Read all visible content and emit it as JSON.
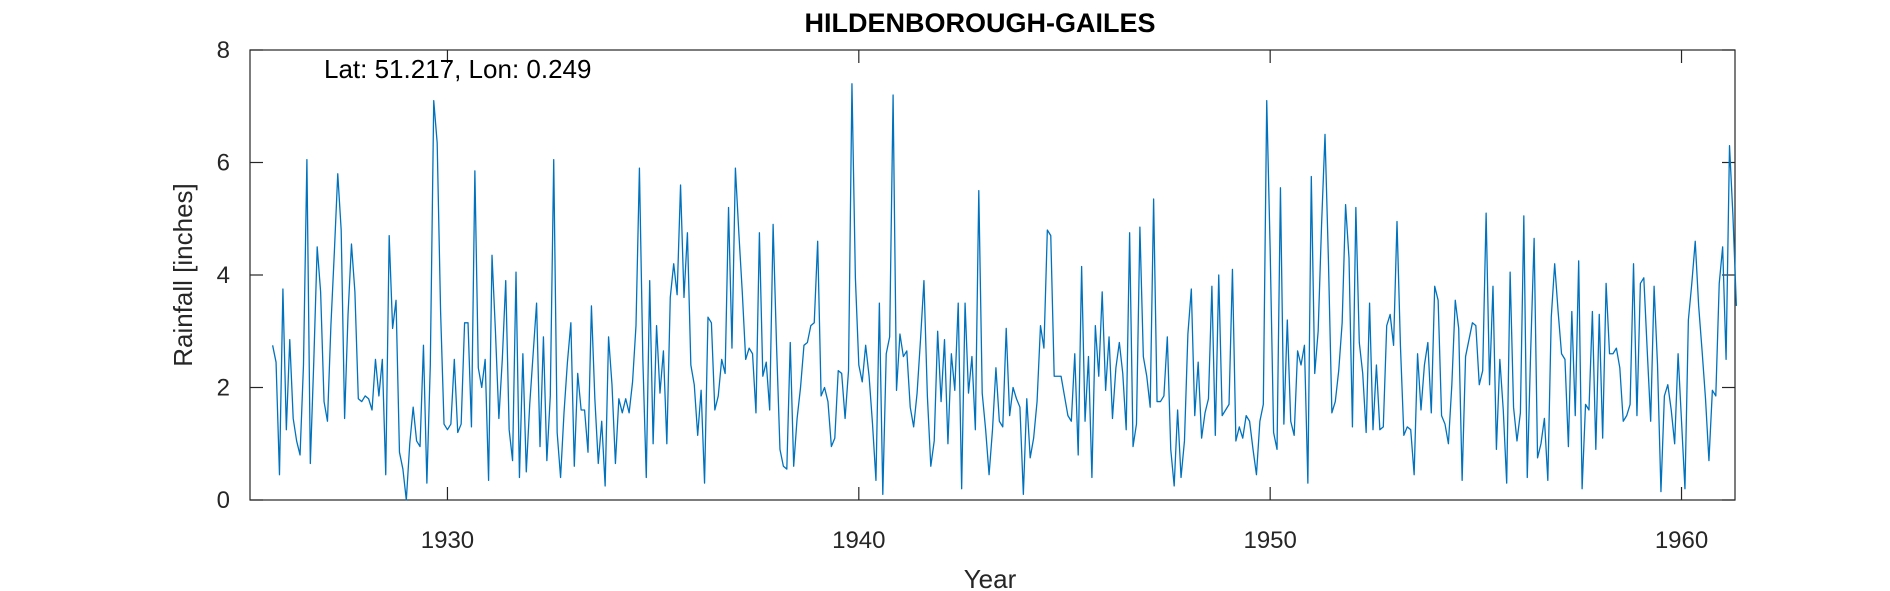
{
  "chart_data": {
    "type": "line",
    "title": "HILDENBOROUGH-GAILES",
    "xlabel": "Year",
    "ylabel": "Rainfall [inches]",
    "annotation": "Lat: 51.217, Lon: 0.249",
    "xlim": [
      1925.2,
      1961.3
    ],
    "ylim": [
      0,
      8
    ],
    "xticks": [
      1930,
      1940,
      1950,
      1960
    ],
    "yticks": [
      0,
      2,
      4,
      6,
      8
    ],
    "xtick_labels": [
      "1930",
      "1940",
      "1950",
      "1960"
    ],
    "ytick_labels": [
      "0",
      "2",
      "4",
      "6",
      "8"
    ],
    "grid": false,
    "line_color": "#0072BD",
    "series": [
      {
        "x_start": 1925.75,
        "x_step": 0.083333,
        "values": [
          2.75,
          2.45,
          0.45,
          3.75,
          1.25,
          2.85,
          1.45,
          1.05,
          0.8,
          2.4,
          6.05,
          0.65,
          2.45,
          4.5,
          3.7,
          1.75,
          1.4,
          3.1,
          4.4,
          5.8,
          4.8,
          1.45,
          3.3,
          4.55,
          3.7,
          1.8,
          1.75,
          1.85,
          1.8,
          1.6,
          2.5,
          1.85,
          2.5,
          0.45,
          4.7,
          3.05,
          3.55,
          0.85,
          0.55,
          0.0,
          1.0,
          1.65,
          1.05,
          0.95,
          2.75,
          0.3,
          2.4,
          7.1,
          6.35,
          3.35,
          1.35,
          1.25,
          1.35,
          2.5,
          1.2,
          1.35,
          3.15,
          3.15,
          1.3,
          5.85,
          2.35,
          2.0,
          2.5,
          0.35,
          4.35,
          3.0,
          1.45,
          2.5,
          3.9,
          1.25,
          0.7,
          4.05,
          0.4,
          2.6,
          0.5,
          1.7,
          2.6,
          3.5,
          0.95,
          2.9,
          0.7,
          1.85,
          6.05,
          1.2,
          0.4,
          1.55,
          2.45,
          3.15,
          0.6,
          2.25,
          1.6,
          1.6,
          0.85,
          3.45,
          1.8,
          0.65,
          1.4,
          0.25,
          2.9,
          2.05,
          0.65,
          1.8,
          1.55,
          1.8,
          1.55,
          2.1,
          3.1,
          5.9,
          2.5,
          0.4,
          3.9,
          1.0,
          3.1,
          1.9,
          2.65,
          1.0,
          3.6,
          4.2,
          3.65,
          5.6,
          3.6,
          4.75,
          2.4,
          2.05,
          1.15,
          1.95,
          0.3,
          3.25,
          3.15,
          1.6,
          1.85,
          2.5,
          2.25,
          5.2,
          2.7,
          5.9,
          4.75,
          3.7,
          2.5,
          2.7,
          2.6,
          1.55,
          4.75,
          2.2,
          2.45,
          1.6,
          4.9,
          2.75,
          0.9,
          0.6,
          0.55,
          2.8,
          0.6,
          1.45,
          2.0,
          2.75,
          2.8,
          3.1,
          3.15,
          4.6,
          1.85,
          2.0,
          1.75,
          0.95,
          1.1,
          2.3,
          2.25,
          1.45,
          2.3,
          7.4,
          3.95,
          2.4,
          2.1,
          2.75,
          2.2,
          1.35,
          0.35,
          3.5,
          0.1,
          2.6,
          2.9,
          7.2,
          1.95,
          2.95,
          2.55,
          2.65,
          1.65,
          1.3,
          1.9,
          2.85,
          3.9,
          1.85,
          0.6,
          1.05,
          3.0,
          1.75,
          2.85,
          1.0,
          2.6,
          1.95,
          3.5,
          0.2,
          3.5,
          1.9,
          2.55,
          1.25,
          5.5,
          1.9,
          1.25,
          0.45,
          1.25,
          2.35,
          1.4,
          1.3,
          3.05,
          1.5,
          2.0,
          1.8,
          1.65,
          0.1,
          1.8,
          0.75,
          1.1,
          1.75,
          3.1,
          2.7,
          4.8,
          4.7,
          2.2,
          2.2,
          2.2,
          1.85,
          1.5,
          1.4,
          2.6,
          0.8,
          4.15,
          1.4,
          2.55,
          0.4,
          3.1,
          2.2,
          3.7,
          1.95,
          2.9,
          1.45,
          2.35,
          2.8,
          2.25,
          1.25,
          4.75,
          0.95,
          1.35,
          4.85,
          2.55,
          2.2,
          1.65,
          5.35,
          1.75,
          1.75,
          1.85,
          2.9,
          0.9,
          0.25,
          1.6,
          0.4,
          1.05,
          2.95,
          3.75,
          1.5,
          2.45,
          1.1,
          1.55,
          1.8,
          3.8,
          1.15,
          4.0,
          1.5,
          1.6,
          1.7,
          4.1,
          1.05,
          1.3,
          1.1,
          1.5,
          1.4,
          0.9,
          0.45,
          1.4,
          1.7,
          7.1,
          4.45,
          1.2,
          0.9,
          5.55,
          1.35,
          3.2,
          1.4,
          1.15,
          2.65,
          2.4,
          2.75,
          0.3,
          5.75,
          2.25,
          3.0,
          4.9,
          6.5,
          4.25,
          1.55,
          1.75,
          2.3,
          3.15,
          5.25,
          4.3,
          1.3,
          5.2,
          2.8,
          2.25,
          1.2,
          3.5,
          1.25,
          2.4,
          1.25,
          1.3,
          3.1,
          3.3,
          2.75,
          4.95,
          2.75,
          1.15,
          1.3,
          1.25,
          0.45,
          2.6,
          1.6,
          2.4,
          2.8,
          1.55,
          3.8,
          3.55,
          1.5,
          1.35,
          1.0,
          2.05,
          3.55,
          3.05,
          0.35,
          2.55,
          2.85,
          3.15,
          3.1,
          2.05,
          2.3,
          5.1,
          2.05,
          3.8,
          0.9,
          2.5,
          1.6,
          0.3,
          4.05,
          1.65,
          1.05,
          1.55,
          5.05,
          0.4,
          2.65,
          4.65,
          0.75,
          1.0,
          1.45,
          0.35,
          3.25,
          4.2,
          3.35,
          2.6,
          2.5,
          0.95,
          3.35,
          1.5,
          4.25,
          0.2,
          1.7,
          1.6,
          3.35,
          0.9,
          3.3,
          1.1,
          3.85,
          2.6,
          2.6,
          2.7,
          2.35,
          1.4,
          1.5,
          1.7,
          4.2,
          1.5,
          3.85,
          3.95,
          2.65,
          1.4,
          3.8,
          2.4,
          0.15,
          1.85,
          2.05,
          1.6,
          1.0,
          2.6,
          1.4,
          0.2,
          3.2,
          3.85,
          4.6,
          3.45,
          2.65,
          1.8,
          0.7,
          1.95,
          1.85,
          3.85,
          4.5,
          2.5,
          6.3,
          5.05,
          3.45
        ]
      }
    ]
  }
}
